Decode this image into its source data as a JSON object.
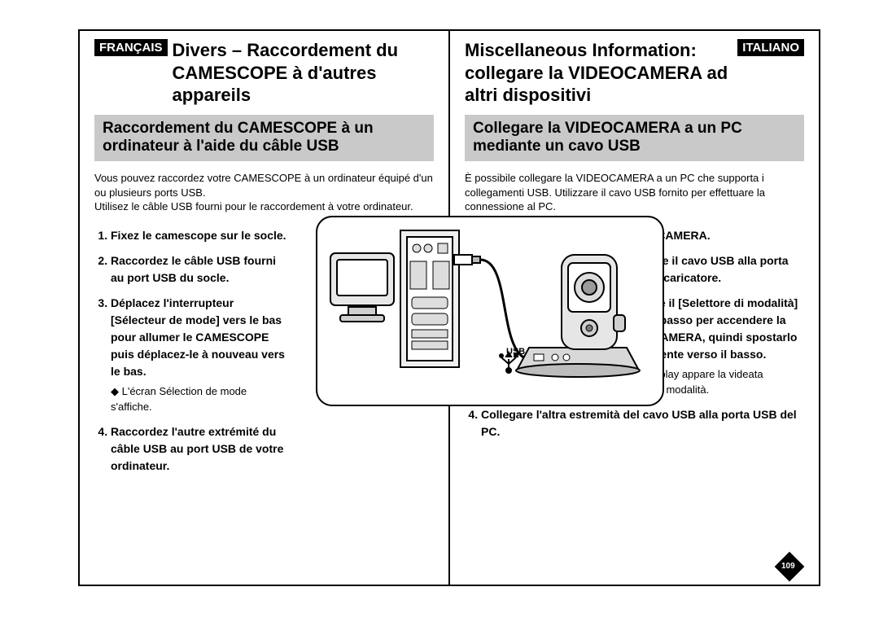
{
  "left": {
    "lang": "FRANÇAIS",
    "title": "Divers – Raccordement du CAMESCOPE à d'autres appareils",
    "subtitle": "Raccordement du CAMESCOPE à un ordinateur à l'aide du câble USB",
    "intro": "Vous pouvez raccordez votre CAMESCOPE à un ordinateur équipé d'un ou plusieurs ports USB.\nUtilisez le câble USB fourni pour le raccordement à votre ordinateur.",
    "steps": [
      {
        "text": "Fixez le camescope sur le socle."
      },
      {
        "text": "Raccordez le câble USB fourni au port USB du socle."
      },
      {
        "text": "Déplacez l'interrupteur [Sélecteur de mode] vers le bas pour allumer le CAMESCOPE puis déplacez-le à nouveau vers le bas.",
        "sub": [
          "L'écran Sélection de mode s'affiche."
        ]
      },
      {
        "text": "Raccordez l'autre extrémité du câble USB au port USB de votre ordinateur."
      }
    ],
    "steps_width_pct": 53
  },
  "right": {
    "lang": "ITALIANO",
    "title": "Miscellaneous Information: collegare la VIDEOCAMERA ad altri dispositivi",
    "subtitle": "Collegare la VIDEOCAMERA a un PC mediante un cavo USB",
    "intro": "È possibile collegare la VIDEOCAMERA a un PC che supporta i collegamenti USB. Utilizzare il cavo USB fornito per effettuare la connessione al PC.",
    "steps": [
      {
        "text": "Inserire il caricatore nella VIDEOCAMERA."
      },
      {
        "text": "Collegare il cavo USB alla porta USB del caricatore."
      },
      {
        "text": "Spostare il [Selettore di modalità]  verso il basso per accendere la VIDEOCAMERA, quindi spostarlo nuovamente verso il basso.",
        "sub": [
          "Sul display appare la videata Seleziona modalità."
        ]
      },
      {
        "text": "Collegare l'altra estremità del cavo USB alla porta USB del PC."
      }
    ],
    "steps_indent_pct": 42
  },
  "page_number": "109",
  "illustration": {
    "usb_label": "USB",
    "colors": {
      "stroke": "#000000",
      "fill_light": "#f4f4f4",
      "fill_mid": "#d8d8d8",
      "fill_dark": "#9a9a9a"
    }
  }
}
